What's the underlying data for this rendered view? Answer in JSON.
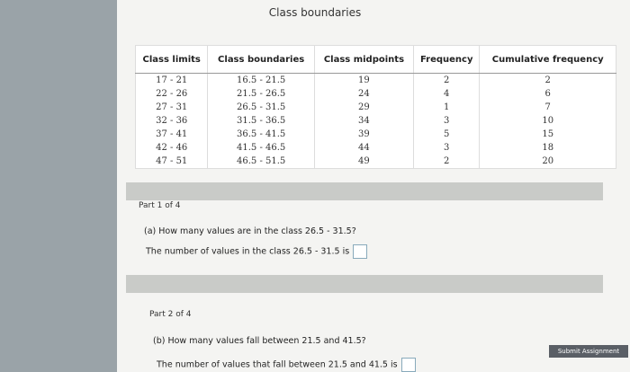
{
  "header": {
    "title": "Class boundaries"
  },
  "table": {
    "headers": [
      "Class limits",
      "Class boundaries",
      "Class midpoints",
      "Frequency",
      "Cumulative frequency"
    ],
    "rows": [
      [
        "17 - 21",
        "16.5 - 21.5",
        19,
        2,
        2
      ],
      [
        "22 - 26",
        "21.5 - 26.5",
        24,
        4,
        6
      ],
      [
        "27 - 31",
        "26.5 - 31.5",
        29,
        1,
        7
      ],
      [
        "32 - 36",
        "31.5 - 36.5",
        34,
        3,
        10
      ],
      [
        "37 - 41",
        "36.5 - 41.5",
        39,
        5,
        15
      ],
      [
        "42 - 46",
        "41.5 - 46.5",
        44,
        3,
        18
      ],
      [
        "47 - 51",
        "46.5 - 51.5",
        49,
        2,
        20
      ]
    ]
  },
  "parts": [
    {
      "label": "Part 1 of 4",
      "question": "(a) How many values are in the class 26.5 - 31.5?",
      "answer_prompt": "The number of values in the class 26.5 - 31.5 is"
    },
    {
      "label": "Part 2 of 4",
      "question": "(b) How many values fall between 21.5 and 41.5?",
      "answer_prompt": "The number of values that fall between 21.5 and 41.5 is"
    }
  ],
  "submit_button": "Submit Assignment"
}
